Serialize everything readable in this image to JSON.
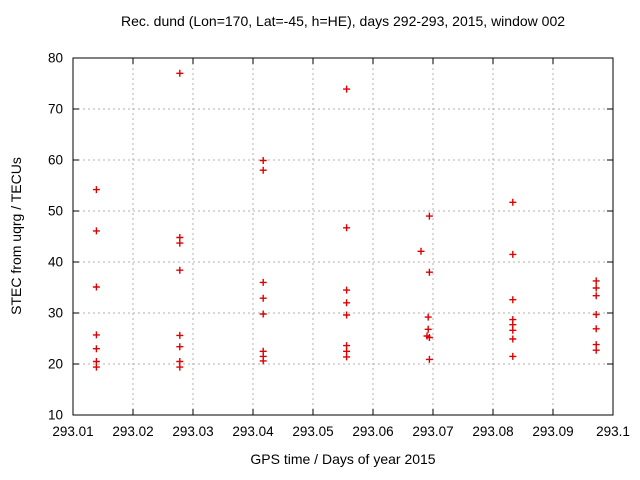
{
  "colors": {
    "background": "#ffffff",
    "axis": "#000000",
    "text": "#000000",
    "grid": "#b0b0b0",
    "marker": "#dd0000"
  },
  "chart_data": {
    "type": "scatter",
    "title": "Rec. dund (Lon=170, Lat=-45, h=HE), days 292-293, 2015, window 002",
    "xlabel": "GPS time / Days of year 2015",
    "ylabel": "STEC from uqrg / TECUs",
    "xlim": [
      293.01,
      293.1
    ],
    "ylim": [
      10,
      80
    ],
    "xtick_values": [
      293.01,
      293.02,
      293.03,
      293.04,
      293.05,
      293.06,
      293.07,
      293.08,
      293.09,
      293.1
    ],
    "xtick_labels": [
      "293.01",
      "293.02",
      "293.03",
      "293.04",
      "293.05",
      "293.06",
      "293.07",
      "293.08",
      "293.09",
      "293.1"
    ],
    "ytick_values": [
      10,
      20,
      30,
      40,
      50,
      60,
      70,
      80
    ],
    "ytick_labels": [
      "10",
      "20",
      "30",
      "40",
      "50",
      "60",
      "70",
      "80"
    ],
    "grid": true,
    "legend": "none",
    "marker": "plus",
    "marker_color": "#dd0000",
    "grid_color": "#b0b0b0",
    "series": [
      {
        "name": "STEC from uqrg",
        "points": [
          [
            293.0139,
            54.2
          ],
          [
            293.0139,
            46.1
          ],
          [
            293.0139,
            35.1
          ],
          [
            293.0139,
            25.7
          ],
          [
            293.0139,
            23.0
          ],
          [
            293.0139,
            20.5
          ],
          [
            293.0139,
            19.4
          ],
          [
            293.0278,
            77.0
          ],
          [
            293.0278,
            44.8
          ],
          [
            293.0278,
            43.7
          ],
          [
            293.0278,
            38.4
          ],
          [
            293.0278,
            25.6
          ],
          [
            293.0278,
            23.4
          ],
          [
            293.0278,
            20.5
          ],
          [
            293.0278,
            19.4
          ],
          [
            293.0417,
            59.9
          ],
          [
            293.0417,
            58.0
          ],
          [
            293.0417,
            36.0
          ],
          [
            293.0417,
            32.9
          ],
          [
            293.0417,
            29.8
          ],
          [
            293.0417,
            22.5
          ],
          [
            293.0417,
            21.5
          ],
          [
            293.0417,
            20.6
          ],
          [
            293.0556,
            73.9
          ],
          [
            293.0556,
            46.7
          ],
          [
            293.0556,
            34.5
          ],
          [
            293.0556,
            32.0
          ],
          [
            293.0556,
            29.6
          ],
          [
            293.0556,
            23.6
          ],
          [
            293.0556,
            22.5
          ],
          [
            293.0556,
            21.4
          ],
          [
            293.0694,
            49.0
          ],
          [
            293.068,
            42.1
          ],
          [
            293.0694,
            38.0
          ],
          [
            293.0692,
            29.2
          ],
          [
            293.0692,
            26.8
          ],
          [
            293.069,
            25.5
          ],
          [
            293.0694,
            25.2
          ],
          [
            293.0694,
            20.9
          ],
          [
            293.0833,
            51.7
          ],
          [
            293.0833,
            41.5
          ],
          [
            293.0833,
            32.6
          ],
          [
            293.0833,
            28.7
          ],
          [
            293.0833,
            27.7
          ],
          [
            293.0833,
            26.6
          ],
          [
            293.0833,
            24.9
          ],
          [
            293.0833,
            21.5
          ],
          [
            293.0972,
            36.3
          ],
          [
            293.0972,
            34.9
          ],
          [
            293.0972,
            33.4
          ],
          [
            293.0972,
            29.7
          ],
          [
            293.0972,
            26.9
          ],
          [
            293.0972,
            23.8
          ],
          [
            293.0972,
            22.7
          ]
        ]
      }
    ]
  }
}
